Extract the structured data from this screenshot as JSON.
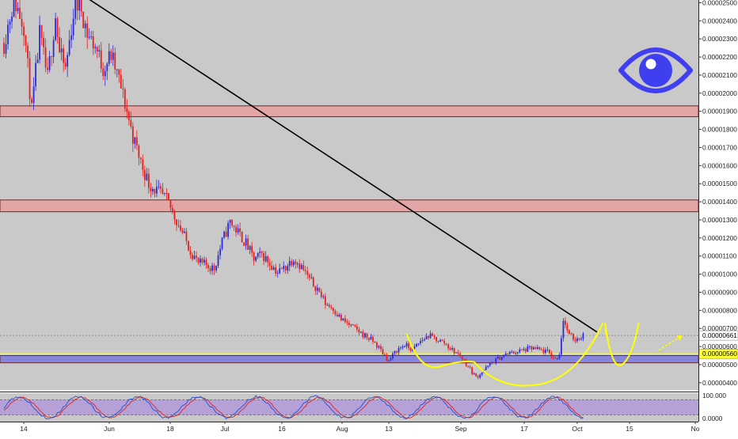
{
  "chart_data": [
    {
      "type": "candlestick",
      "y_tick_labels": [
        "0.00002500",
        "0.00002400",
        "0.00002300",
        "0.00002200",
        "0.00002100",
        "0.00002000",
        "0.00001900",
        "0.00001800",
        "0.00001700",
        "0.00001600",
        "0.00001500",
        "0.00001400",
        "0.00001300",
        "0.00001200",
        "0.00001100",
        "0.00001000",
        "0.00000900",
        "0.00000800",
        "0.00000700",
        "0.00000600",
        "0.00000500",
        "0.00000400"
      ],
      "ylim": [
        3.6e-06,
        2.515e-05
      ],
      "x_tick_labels": [
        "14",
        "Jun",
        "18",
        "Jul",
        "16",
        "Aug",
        "13",
        "Sep",
        "17",
        "Oct",
        "15",
        "No"
      ],
      "price_labels": [
        {
          "text": "0.00000661",
          "value": 6.61e-06,
          "bg": "#ffffff",
          "fg": "#000000"
        },
        {
          "text": "0.00000560",
          "value": 5.6e-06,
          "bg": "#ffff33",
          "fg": "#000000"
        }
      ],
      "zones": [
        {
          "from": 1.87e-05,
          "to": 1.93e-05,
          "color": "#e8a0a0"
        },
        {
          "from": 1.345e-05,
          "to": 1.41e-05,
          "color": "#e8a0a0"
        },
        {
          "from": 5.1e-06,
          "to": 5.5e-06,
          "color": "#7a7ae0"
        }
      ],
      "horizontal_lines": [
        {
          "value": 5.6e-06,
          "color": "#ffff00"
        },
        {
          "value": 6.61e-06,
          "color": "#999999",
          "dashed": true
        }
      ],
      "trendline": {
        "from": {
          "candle": 40,
          "value": 2.54e-05
        },
        "to": {
          "candle": 299,
          "value": 6.8e-06
        }
      },
      "colors": {
        "up": "#2b2bd6",
        "down": "#e3201b",
        "background": "#c9c9c9",
        "trendline": "#000000",
        "annotation": "#ffff00"
      },
      "series": [
        {
          "price_path": [
            [
              0,
              2.28e-05
            ],
            [
              5,
              2.52e-05
            ],
            [
              10,
              2.38e-05
            ],
            [
              14,
              1.9e-05
            ],
            [
              18,
              2.32e-05
            ],
            [
              22,
              2.08e-05
            ],
            [
              26,
              2.43e-05
            ],
            [
              28,
              2.22e-05
            ],
            [
              31,
              2.13e-05
            ],
            [
              35,
              2.44e-05
            ],
            [
              38,
              2.52e-05
            ],
            [
              42,
              2.33e-05
            ],
            [
              46,
              2.26e-05
            ],
            [
              50,
              2.14e-05
            ],
            [
              54,
              2.21e-05
            ],
            [
              58,
              2.07e-05
            ],
            [
              62,
              1.9e-05
            ],
            [
              65,
              1.76e-05
            ],
            [
              69,
              1.62e-05
            ],
            [
              73,
              1.5e-05
            ],
            [
              77,
              1.46e-05
            ],
            [
              82,
              1.41e-05
            ],
            [
              86,
              1.32e-05
            ],
            [
              90,
              1.23e-05
            ],
            [
              94,
              1.13e-05
            ],
            [
              98,
              1.06e-05
            ],
            [
              102,
              1.05e-05
            ],
            [
              106,
              1.03e-05
            ],
            [
              110,
              1.18e-05
            ],
            [
              114,
              1.29e-05
            ],
            [
              118,
              1.23e-05
            ],
            [
              122,
              1.17e-05
            ],
            [
              126,
              1.08e-05
            ],
            [
              130,
              1.11e-05
            ],
            [
              134,
              1.06e-05
            ],
            [
              138,
              1.01e-05
            ],
            [
              142,
              1.04e-05
            ],
            [
              146,
              1.09e-05
            ],
            [
              150,
              1.04e-05
            ],
            [
              154,
              9.7e-06
            ],
            [
              158,
              9.2e-06
            ],
            [
              162,
              8.4e-06
            ],
            [
              166,
              8.1e-06
            ],
            [
              170,
              7.5e-06
            ],
            [
              174,
              7.2e-06
            ],
            [
              178,
              6.9e-06
            ],
            [
              182,
              6.6e-06
            ],
            [
              186,
              6.3e-06
            ],
            [
              190,
              5.8e-06
            ],
            [
              194,
              5.2e-06
            ],
            [
              198,
              5.8e-06
            ],
            [
              202,
              6.1e-06
            ],
            [
              206,
              5.8e-06
            ],
            [
              210,
              6.3e-06
            ],
            [
              214,
              6.6e-06
            ],
            [
              218,
              6.4e-06
            ],
            [
              222,
              6.2e-06
            ],
            [
              226,
              5.8e-06
            ],
            [
              230,
              5.5e-06
            ],
            [
              234,
              4.9e-06
            ],
            [
              238,
              4.3e-06
            ],
            [
              242,
              4.7e-06
            ],
            [
              246,
              5.1e-06
            ],
            [
              250,
              5.4e-06
            ],
            [
              254,
              5.6e-06
            ],
            [
              258,
              5.7e-06
            ],
            [
              262,
              5.8e-06
            ],
            [
              266,
              5.9e-06
            ],
            [
              270,
              5.8e-06
            ],
            [
              274,
              5.7e-06
            ],
            [
              278,
              5.3e-06
            ],
            [
              280,
              5.6e-06
            ],
            [
              282,
              7.5e-06
            ],
            [
              285,
              6.6e-06
            ],
            [
              288,
              6.4e-06
            ],
            [
              292,
              6.6e-06
            ]
          ]
        }
      ],
      "stochastic": {
        "top_label": "100.000",
        "bottom_label": "0.0000",
        "band": [
          20,
          80
        ],
        "colors": {
          "k": "#1f4fd6",
          "d": "#e3201b",
          "band": "#b29bd8"
        }
      },
      "annotations": [
        {
          "type": "curve",
          "shape": "smile",
          "from_candle": 203,
          "to_candle": 237,
          "bottom": 4.9e-06
        },
        {
          "type": "curve",
          "shape": "smile",
          "from_candle": 237,
          "to_candle": 302,
          "bottom": 3.9e-06
        },
        {
          "type": "curve",
          "shape": "smile",
          "from_candle": 303,
          "to_candle": 320,
          "bottom": 5e-06
        },
        {
          "type": "arrow",
          "from_candle": 330,
          "to_candle": 342,
          "value_from": 5.8e-06,
          "value_to": 6.6e-06
        }
      ]
    }
  ],
  "logo": {
    "name": "eye-icon",
    "color": "#3f3ff0"
  }
}
